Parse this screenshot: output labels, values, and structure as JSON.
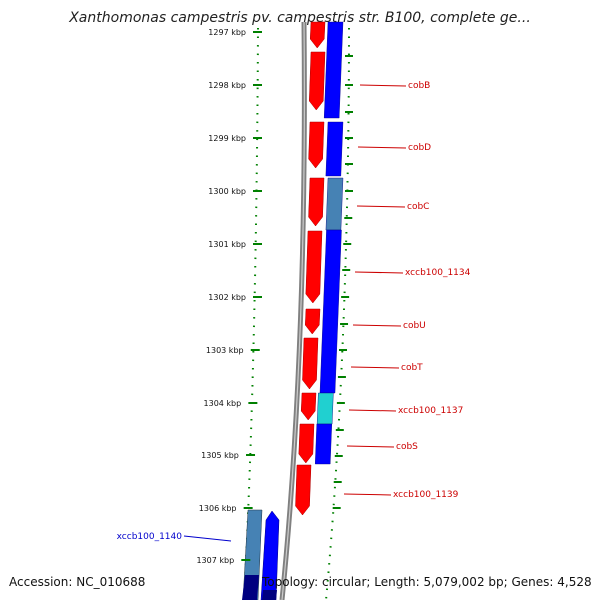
{
  "title": "Xanthomonas campestris pv. campestris str. B100, complete ge...",
  "footer": {
    "accession": "Accession: NC_010688",
    "topology": "Topology: circular; Length: 5,079,002 bp; Genes: 4,528"
  },
  "scale": {
    "unit": "kbp",
    "ticks": [
      "1297 kbp",
      "1298 kbp",
      "1299 kbp",
      "1300 kbp",
      "1301 kbp",
      "1302 kbp",
      "1303 kbp",
      "1304 kbp",
      "1305 kbp",
      "1306 kbp",
      "1307 kbp"
    ]
  },
  "colors": {
    "forward_strand": "#ff0000",
    "reverse_strand": "#0000ff",
    "cobC_gene": "#4682b4",
    "xccb100_1137_gene": "#20d0d0",
    "xccb100_1140_gene": "#4682b4",
    "right_labels": "#cc0000",
    "left_labels": "#0000cc",
    "dotted_guides": "#008000",
    "backbone": "#808080"
  },
  "genes": [
    {
      "name": "cobB",
      "side": "right"
    },
    {
      "name": "cobD",
      "side": "right"
    },
    {
      "name": "cobC",
      "side": "right"
    },
    {
      "name": "xccb100_1134",
      "side": "right"
    },
    {
      "name": "cobU",
      "side": "right"
    },
    {
      "name": "cobT",
      "side": "right"
    },
    {
      "name": "xccb100_1137",
      "side": "right"
    },
    {
      "name": "cobS",
      "side": "right"
    },
    {
      "name": "xccb100_1139",
      "side": "right"
    },
    {
      "name": "xccb100_1140",
      "side": "left"
    }
  ]
}
